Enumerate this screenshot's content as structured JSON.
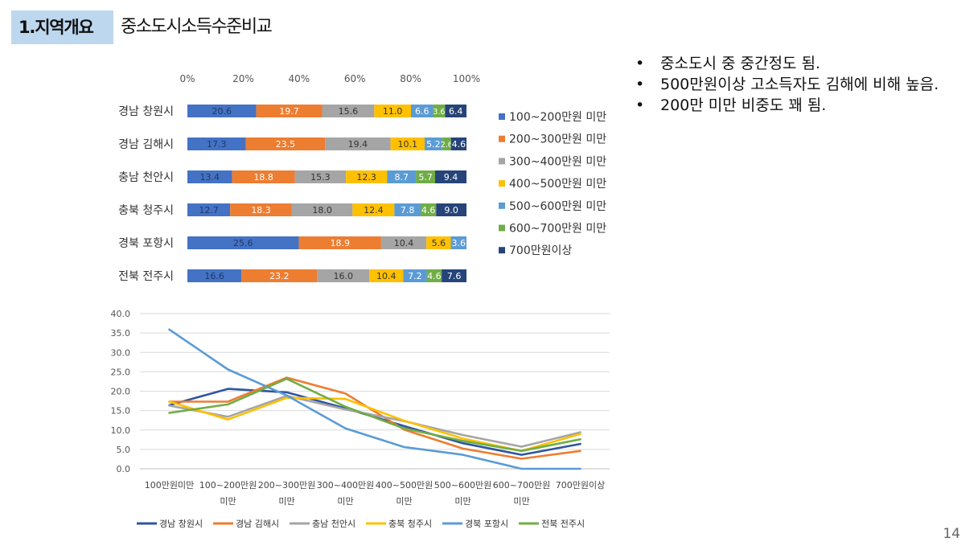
{
  "header": {
    "section_label": "1.지역개요",
    "title": "중소도시소득수준비교"
  },
  "notes": [
    "중소도시 중 중간정도 됨.",
    "500만원이상 고소득자도 김해에 비해 높음.",
    "200만 미만 비중도 꽤 됨."
  ],
  "bullet_symbol": "•",
  "page_number": "14",
  "chart_data": [
    {
      "type": "bar",
      "orientation": "horizontal",
      "stacked": "percent",
      "title": "",
      "xlabel": "",
      "ylabel": "",
      "xlim": [
        0,
        100
      ],
      "x_ticks": [
        "0%",
        "20%",
        "40%",
        "60%",
        "80%",
        "100%"
      ],
      "legend_position": "right",
      "grid": false,
      "categories": [
        "경남 창원시",
        "경남 김해시",
        "충남 천안시",
        "충북 청주시",
        "경북 포항시",
        "전북 전주시"
      ],
      "series": [
        {
          "name": "100~200만원 미만",
          "color": "#4472c4",
          "values": [
            20.6,
            17.3,
            13.4,
            12.7,
            25.6,
            16.6
          ]
        },
        {
          "name": "200~300만원 미만",
          "color": "#ed7d31",
          "values": [
            19.7,
            23.5,
            18.8,
            18.3,
            18.9,
            23.2
          ]
        },
        {
          "name": "300~400만원 미만",
          "color": "#a5a5a5",
          "values": [
            15.6,
            19.4,
            15.3,
            18.0,
            10.4,
            16.0
          ]
        },
        {
          "name": "400~500만원 미만",
          "color": "#ffc000",
          "values": [
            11.0,
            10.1,
            12.3,
            12.4,
            5.6,
            10.4
          ]
        },
        {
          "name": "500~600만원 미만",
          "color": "#5b9bd5",
          "values": [
            6.6,
            5.2,
            8.7,
            7.8,
            3.6,
            7.2
          ]
        },
        {
          "name": "600~700만원 미만",
          "color": "#70ad47",
          "values": [
            3.6,
            2.6,
            5.7,
            4.6,
            0.0,
            4.6
          ]
        },
        {
          "name": "700만원이상",
          "color": "#264478",
          "values": [
            6.4,
            4.6,
            9.4,
            9.0,
            0.0,
            7.6
          ]
        }
      ],
      "data_labels": [
        [
          "20.6",
          "19.7",
          "15.6",
          "11.0",
          "6.6",
          "3.6",
          "6.4"
        ],
        [
          "17.3",
          "23.5",
          "19.4",
          "10.1",
          "5.2",
          "2.6",
          "4.6"
        ],
        [
          "13.4",
          "18.8",
          "15.3",
          "12.3",
          "8.7",
          "5.7",
          "9.4"
        ],
        [
          "12.7",
          "18.3",
          "18.0",
          "12.4",
          "7.8",
          "4.6",
          "9.0"
        ],
        [
          "25.6",
          "18.9",
          "10.4",
          "5.6",
          "3.6",
          "0.0",
          "0.0"
        ],
        [
          "16.6",
          "23.2",
          "16.0",
          "10.4",
          "7.2",
          "4.6",
          "7.6"
        ]
      ]
    },
    {
      "type": "line",
      "title": "",
      "xlabel": "",
      "ylabel": "",
      "ylim": [
        0,
        40
      ],
      "y_ticks": [
        "0.0",
        "5.0",
        "10.0",
        "15.0",
        "20.0",
        "25.0",
        "30.0",
        "35.0",
        "40.0"
      ],
      "grid": true,
      "legend_position": "bottom",
      "categories": [
        [
          "100만원미만"
        ],
        [
          "100~200만원",
          "미만"
        ],
        [
          "200~300만원",
          "미만"
        ],
        [
          "300~400만원",
          "미만"
        ],
        [
          "400~500만원",
          "미만"
        ],
        [
          "500~600만원",
          "미만"
        ],
        [
          "600~700만원",
          "미만"
        ],
        [
          "700만원이상"
        ]
      ],
      "series": [
        {
          "name": "경남 창원시",
          "color": "#2f55a0",
          "values": [
            16.4,
            20.6,
            19.7,
            15.6,
            11.0,
            6.6,
            3.6,
            6.4
          ]
        },
        {
          "name": "경남 김해시",
          "color": "#ed7d31",
          "values": [
            17.3,
            17.3,
            23.5,
            19.4,
            10.1,
            5.2,
            2.6,
            4.6
          ]
        },
        {
          "name": "충남 천안시",
          "color": "#a5a5a5",
          "values": [
            16.3,
            13.4,
            18.8,
            15.3,
            12.3,
            8.7,
            5.7,
            9.4
          ]
        },
        {
          "name": "충북 청주시",
          "color": "#ffc000",
          "values": [
            17.3,
            12.7,
            18.3,
            18.0,
            12.4,
            7.8,
            4.6,
            9.0
          ]
        },
        {
          "name": "경북 포항시",
          "color": "#5b9bd5",
          "values": [
            35.9,
            25.6,
            18.9,
            10.4,
            5.6,
            3.6,
            0.0,
            0.0
          ]
        },
        {
          "name": "전북 전주시",
          "color": "#70ad47",
          "values": [
            14.4,
            16.6,
            23.2,
            16.0,
            10.4,
            7.2,
            4.6,
            7.6
          ]
        }
      ]
    }
  ]
}
